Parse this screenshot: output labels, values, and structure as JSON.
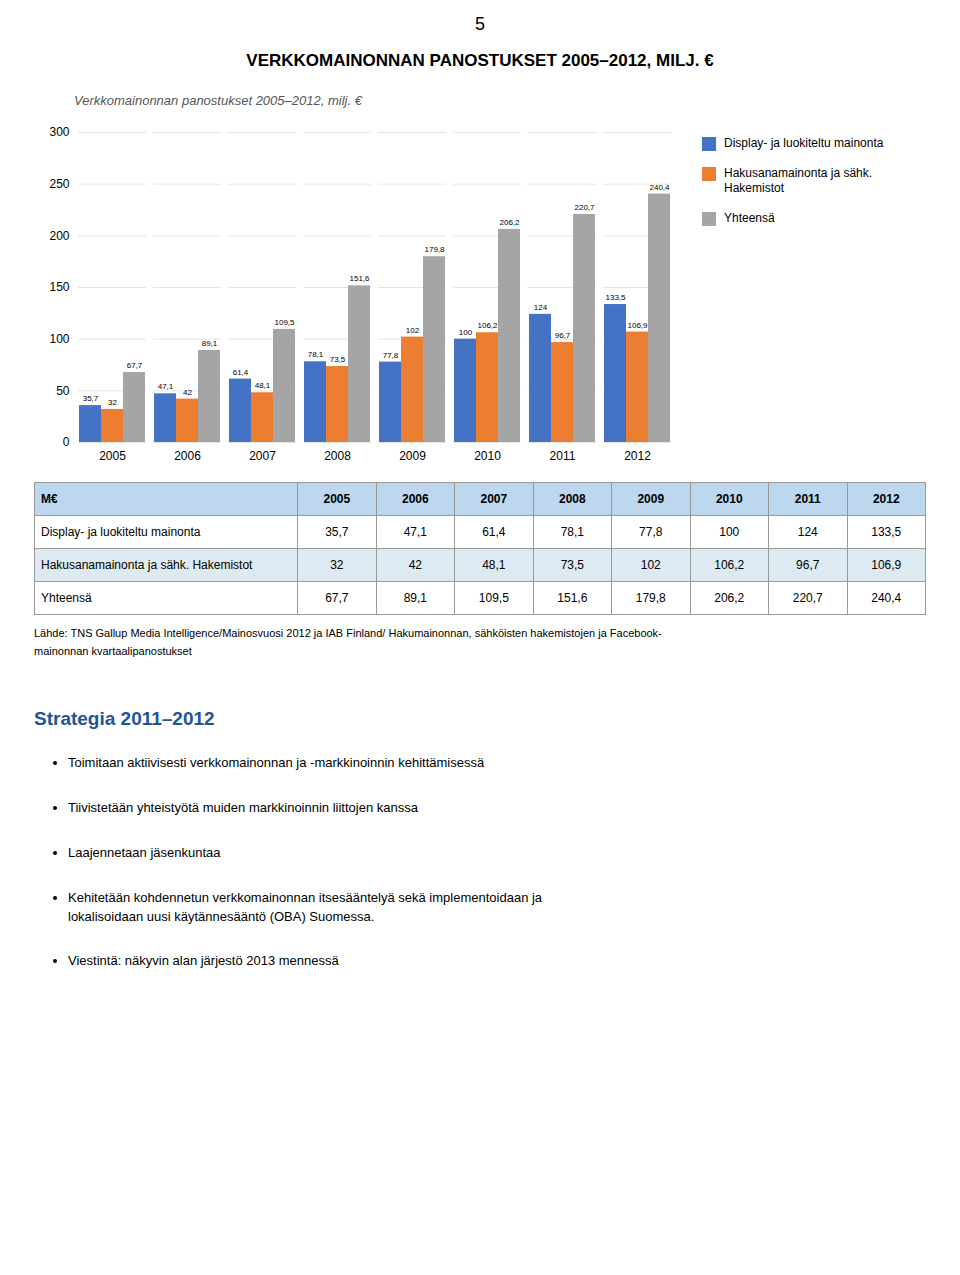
{
  "chart_data": {
    "type": "bar",
    "title": "VERKKOMAINONNAN PANOSTUKSET 2005–2012, MILJ. €",
    "subtitle": "Verkkomainonnan panostukset 2005–2012, milj. €",
    "categories": [
      "2005",
      "2006",
      "2007",
      "2008",
      "2009",
      "2010",
      "2011",
      "2012"
    ],
    "series": [
      {
        "name": "Display- ja luokiteltu mainonta",
        "color": "#4472C4",
        "values": [
          35.7,
          47.1,
          61.4,
          78.1,
          77.8,
          100,
          124,
          133.5
        ],
        "value_labels": [
          "35,7",
          "47,1",
          "61,4",
          "78,1",
          "77,8",
          "100",
          "124",
          "133,5"
        ]
      },
      {
        "name": "Hakusanamainonta ja sähk.\nHakemistot",
        "color": "#ED7D31",
        "values": [
          32,
          42,
          48.1,
          73.5,
          102,
          106.2,
          96.7,
          106.9
        ],
        "value_labels": [
          "32",
          "42",
          "48,1",
          "73,5",
          "102",
          "106,2",
          "96,7",
          "106,9"
        ]
      },
      {
        "name": "Yhteensä",
        "color": "#A5A5A5",
        "values": [
          67.7,
          89.1,
          109.5,
          151.6,
          179.8,
          206.2,
          220.7,
          240.4
        ],
        "value_labels": [
          "67,7",
          "89,1",
          "109,5",
          "151,6",
          "179,8",
          "206,2",
          "220,7",
          "240,4"
        ]
      }
    ],
    "ylim": [
      0,
      300
    ],
    "yticks": [
      0,
      50,
      100,
      150,
      200,
      250,
      300
    ],
    "grid": true,
    "legend": "right",
    "data_labels": true
  },
  "page_number": "5",
  "table": {
    "header": [
      "M€",
      "2005",
      "2006",
      "2007",
      "2008",
      "2009",
      "2010",
      "2011",
      "2012"
    ],
    "rows": [
      [
        "Display- ja luokiteltu mainonta",
        "35,7",
        "47,1",
        "61,4",
        "78,1",
        "77,8",
        "100",
        "124",
        "133,5"
      ],
      [
        "Hakusanamainonta ja sähk. Hakemistot",
        "32",
        "42",
        "48,1",
        "73,5",
        "102",
        "106,2",
        "96,7",
        "106,9"
      ],
      [
        "Yhteensä",
        "67,7",
        "89,1",
        "109,5",
        "151,6",
        "179,8",
        "206,2",
        "220,7",
        "240,4"
      ]
    ]
  },
  "source": "Lähde: TNS Gallup Media Intelligence/Mainosvuosi 2012 ja IAB Finland/ Hakumainonnan, sähköisten hakemistojen ja Facebook-\nmainonnan kvartaalipanostukset",
  "strategy_title": "Strategia 2011–2012",
  "bullets": [
    "Toimitaan aktiivisesti verkkomainonnan ja -markkinoinnin kehittämisessä",
    "Tiivistetään yhteistyötä muiden markkinoinnin liittojen kanssa",
    "Laajennetaan jäsenkuntaa",
    "Kehitetään kohdennetun verkkomainonnan itsesääntelyä sekä implementoidaan ja\nlokalisoidaan uusi käytännesääntö (OBA) Suomessa.",
    "Viestintä: näkyvin alan järjestö 2013 mennessä"
  ]
}
